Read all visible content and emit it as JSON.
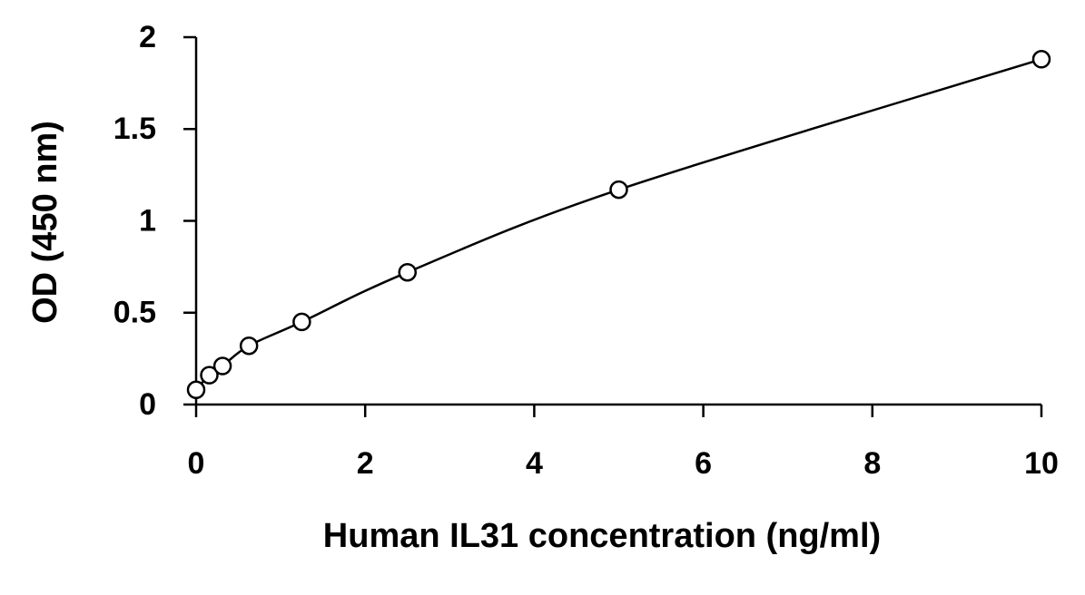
{
  "chart_data": {
    "type": "scatter",
    "x_label": "Human IL31 concentration (ng/ml)",
    "y_label": "OD (450 nm)",
    "series": [
      {
        "x": [
          0,
          0.156,
          0.3125,
          0.625,
          1.25,
          2.5,
          5,
          10
        ],
        "values": [
          0.08,
          0.16,
          0.21,
          0.32,
          0.45,
          0.72,
          1.17,
          1.88
        ],
        "color": "#000000",
        "marker": "open-circle",
        "line": true
      }
    ],
    "xlim": [
      0,
      10
    ],
    "xticks": [
      0,
      2,
      4,
      6,
      8,
      10
    ],
    "ylim": [
      0,
      2
    ],
    "yticks": [
      0,
      0.5,
      1,
      1.5,
      2
    ],
    "grid": false
  }
}
